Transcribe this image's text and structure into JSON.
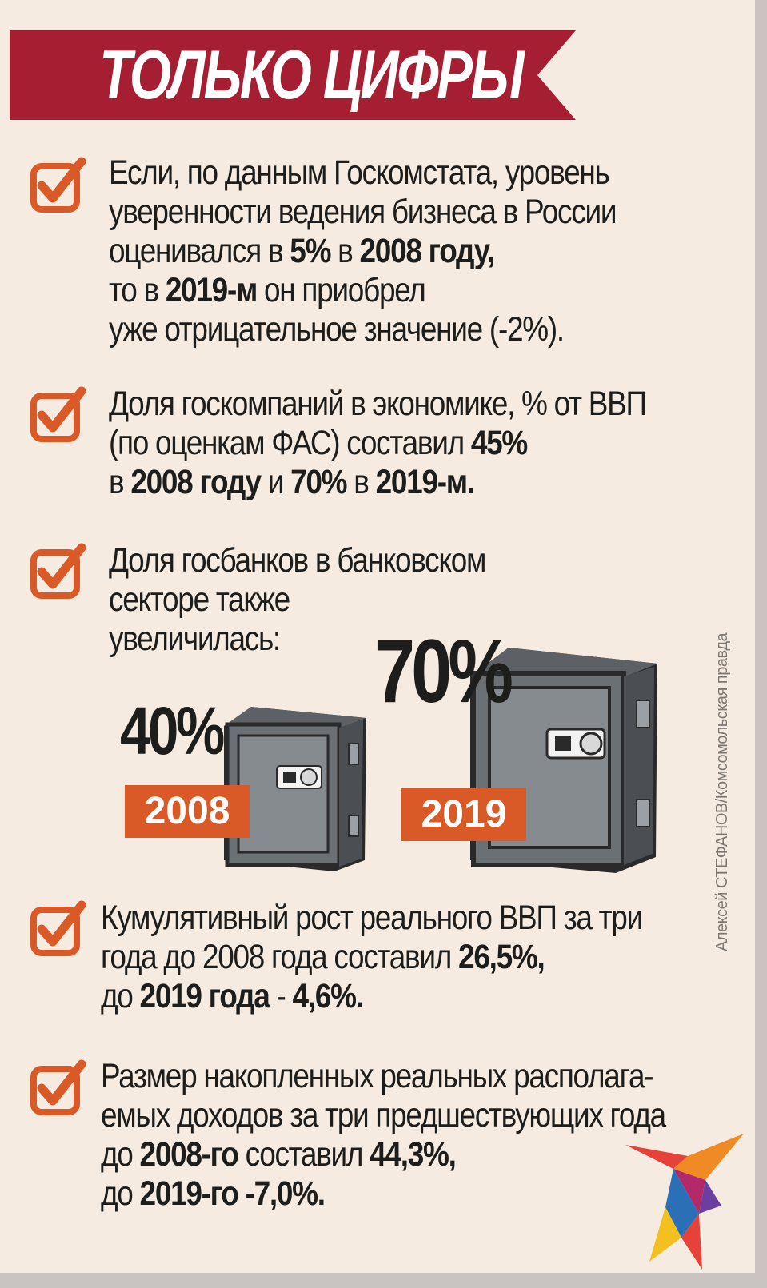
{
  "header": {
    "title": "ТОЛЬКО ЦИФРЫ"
  },
  "items": [
    {
      "lines": [
        [
          {
            "t": "Если, по данным Госкомстата, уровень"
          }
        ],
        [
          {
            "t": "уверенности ведения бизнеса в России"
          }
        ],
        [
          {
            "t": "оценивался в "
          },
          {
            "t": "5%",
            "b": true
          },
          {
            "t": " в "
          },
          {
            "t": "2008 году,",
            "b": true
          }
        ],
        [
          {
            "t": "то в "
          },
          {
            "t": "2019-м",
            "b": true
          },
          {
            "t": " он приобрел"
          }
        ],
        [
          {
            "t": "уже отрицательное значение (-2%)."
          }
        ]
      ]
    },
    {
      "lines": [
        [
          {
            "t": "Доля госкомпаний в экономике, % от ВВП"
          }
        ],
        [
          {
            "t": "(по оценкам ФАС) составил "
          },
          {
            "t": "45%",
            "b": true
          }
        ],
        [
          {
            "t": "в "
          },
          {
            "t": "2008 году",
            "b": true
          },
          {
            "t": " и "
          },
          {
            "t": "70%",
            "b": true
          },
          {
            "t": " в "
          },
          {
            "t": "2019-м.",
            "b": true
          }
        ]
      ]
    },
    {
      "lines": [
        [
          {
            "t": "Доля госбанков в банковском"
          }
        ],
        [
          {
            "t": "секторе также"
          }
        ],
        [
          {
            "t": "увеличилась:"
          }
        ]
      ]
    },
    {
      "lines": [
        [
          {
            "t": "Кумулятивный рост реального ВВП за три"
          }
        ],
        [
          {
            "t": "года до 2008 года составил "
          },
          {
            "t": "26,5%,",
            "b": true
          }
        ],
        [
          {
            "t": "до "
          },
          {
            "t": "2019 года",
            "b": true
          },
          {
            "t": " - "
          },
          {
            "t": "4,6%.",
            "b": true
          }
        ]
      ]
    },
    {
      "lines": [
        [
          {
            "t": "Размер накопленных реальных располага-"
          }
        ],
        [
          {
            "t": "емых доходов за три предшествующих года"
          }
        ],
        [
          {
            "t": "до "
          },
          {
            "t": "2008-го",
            "b": true
          },
          {
            "t": " составил "
          },
          {
            "t": "44,3%,",
            "b": true
          }
        ],
        [
          {
            "t": "до "
          },
          {
            "t": "2019-го",
            "b": true
          },
          {
            "t": " "
          },
          {
            "t": "-7,0%.",
            "b": true
          }
        ]
      ]
    }
  ],
  "banks": [
    {
      "year": "2008",
      "percent": "40%",
      "value": 40
    },
    {
      "year": "2019",
      "percent": "70%",
      "value": 70
    }
  ],
  "credit": "Алексей СТЕФАНОВ/Комсомольская правда",
  "colors": {
    "background": "#f6ebe0",
    "banner": "#a61e32",
    "accent": "#d95a26",
    "text": "#1d1d1b",
    "safe": "#7d8287"
  },
  "icons": [
    "checkbox-check-icon",
    "safe-icon",
    "kp-bird-logo-icon"
  ]
}
